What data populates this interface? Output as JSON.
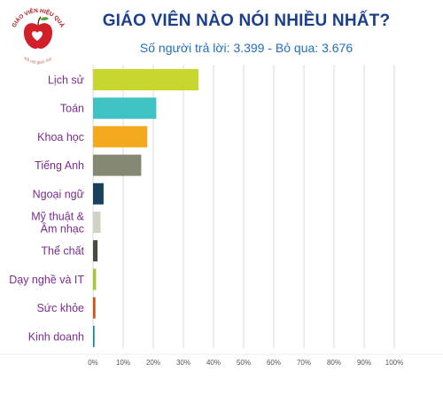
{
  "logo": {
    "top_text": "GIÁO VIÊN HIỆU QUẢ",
    "bottom_text": "kết nối giáo dục"
  },
  "header": {
    "title": "GIÁO VIÊN NÀO NÓI NHIỀU NHẤT?",
    "subtitle": "Số người trả lời: 3.399 - Bỏ qua: 3.676"
  },
  "colors": {
    "title": "#1c3f8c",
    "subtitle": "#1f6fc0",
    "category_label": "#7b2c8f",
    "grid": "#d9d9d9",
    "tick": "#555555"
  },
  "chart_data": {
    "type": "bar",
    "orientation": "horizontal",
    "title": "GIÁO VIÊN NÀO NÓI NHIỀU NHẤT?",
    "xlabel": "",
    "ylabel": "",
    "xlim": [
      0,
      100
    ],
    "grid": true,
    "x_ticks": [
      "0%",
      "10%",
      "20%",
      "30%",
      "40%",
      "50%",
      "60%",
      "70%",
      "80%",
      "90%",
      "100%"
    ],
    "categories": [
      [
        "Lịch sử"
      ],
      [
        "Toán"
      ],
      [
        "Khoa học"
      ],
      [
        "Tiếng Anh"
      ],
      [
        "Ngoại ngữ"
      ],
      [
        "Mỹ thuật &",
        "Âm nhạc"
      ],
      [
        "Thể chất"
      ],
      [
        "Dạy nghề và IT"
      ],
      [
        "Sức khỏe"
      ],
      [
        "Kinh doanh"
      ]
    ],
    "values": [
      35,
      21,
      18,
      16,
      3.5,
      2.5,
      1.5,
      1,
      0.8,
      0.5
    ],
    "bar_colors": [
      "#c7d72f",
      "#3fc2c2",
      "#f4a81e",
      "#858873",
      "#17415c",
      "#d1d1c5",
      "#4a4a3f",
      "#a2c83a",
      "#d4511c",
      "#168c8c"
    ]
  }
}
